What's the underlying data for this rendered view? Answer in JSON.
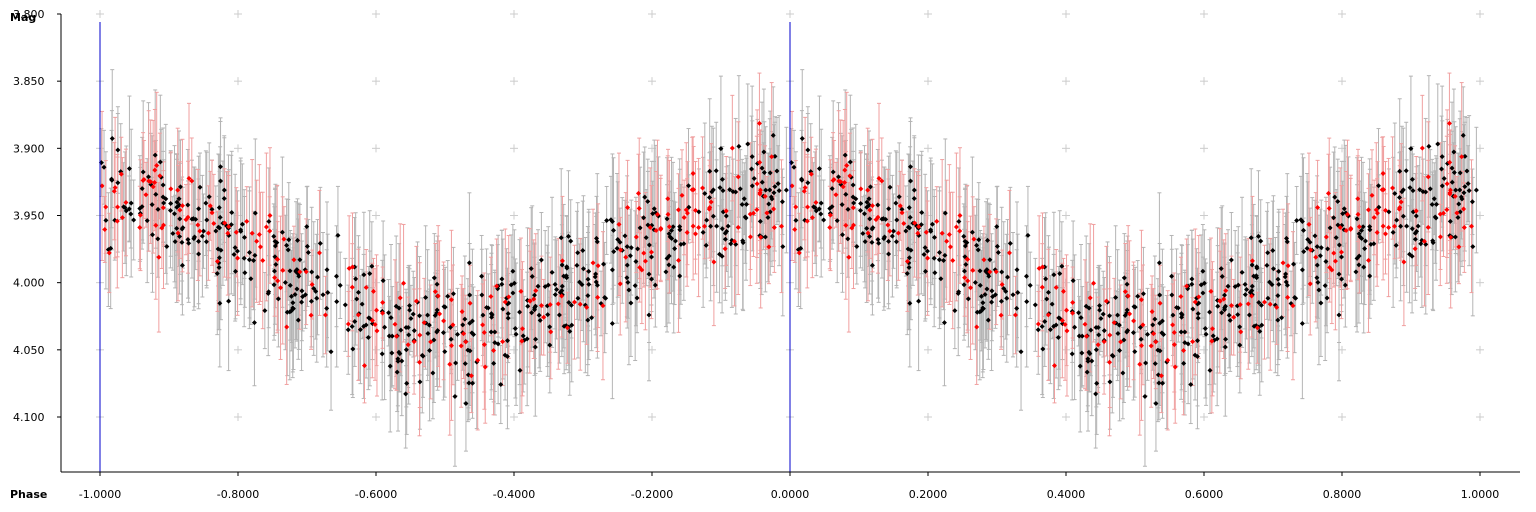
{
  "chart_data": {
    "type": "scatter",
    "xlabel": "Phase",
    "ylabel": "Mag",
    "xlim": [
      -1.06,
      1.06
    ],
    "ylim": [
      4.14,
      3.8
    ],
    "y_inverted": true,
    "x_ticks": [
      "-1.0000",
      "-0.8000",
      "-0.6000",
      "-0.4000",
      "-0.2000",
      "0.0000",
      "0.2000",
      "0.4000",
      "0.6000",
      "0.8000",
      "1.0000"
    ],
    "x_tick_values": [
      -1.0,
      -0.8,
      -0.6,
      -0.4,
      -0.2,
      0.0,
      0.2,
      0.4,
      0.6,
      0.8,
      1.0
    ],
    "y_ticks": [
      "3.800",
      "3.850",
      "3.900",
      "3.950",
      "4.000",
      "4.050",
      "4.100"
    ],
    "y_tick_values": [
      3.8,
      3.85,
      3.9,
      3.95,
      4.0,
      4.05,
      4.1
    ],
    "grid": "plus-markers",
    "phase_markers": [
      -1.0,
      0.0
    ],
    "colors": {
      "series_black": "#000000",
      "series_red": "#ff0000",
      "errorbar_black": "#b4b4b4",
      "errorbar_red": "#f0a0a0",
      "phase_marker": "#0000cc",
      "grid": "#cccccc",
      "axis": "#000000"
    },
    "model": {
      "description": "Phase-folded light curve, period 1.0, points shown twice (phase -1..1)",
      "mean_mag": 3.985,
      "amplitude_mag": 0.05,
      "minimum_phase": -0.5,
      "scatter_mag": 0.02,
      "errorbar_half_height_mag": 0.04
    },
    "series": [
      {
        "color": "#000000",
        "count": 1050,
        "error_color": "#b4b4b4"
      },
      {
        "color": "#ff0000",
        "count": 420,
        "error_color": "#f0a0a0"
      }
    ]
  }
}
